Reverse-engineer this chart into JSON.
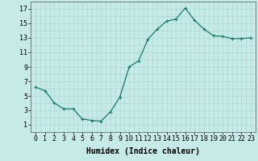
{
  "x": [
    0,
    1,
    2,
    3,
    4,
    5,
    6,
    7,
    8,
    9,
    10,
    11,
    12,
    13,
    14,
    15,
    16,
    17,
    18,
    19,
    20,
    21,
    22,
    23
  ],
  "y": [
    6.2,
    5.7,
    4.0,
    3.2,
    3.2,
    1.8,
    1.6,
    1.5,
    2.8,
    4.8,
    9.0,
    9.8,
    12.8,
    14.2,
    15.3,
    15.6,
    17.1,
    15.4,
    14.2,
    13.3,
    13.2,
    12.9,
    12.9,
    13.0
  ],
  "line_color": "#1a7a6e",
  "marker": "+",
  "marker_size": 3,
  "marker_linewidth": 0.8,
  "line_width": 0.9,
  "background_color": "#c5eae7",
  "grid_color": "#a8d5d1",
  "xlabel": "Humidex (Indice chaleur)",
  "xlabel_fontsize": 7,
  "tick_fontsize": 6,
  "ylim": [
    0,
    18
  ],
  "xlim": [
    -0.5,
    23.5
  ],
  "yticks": [
    1,
    3,
    5,
    7,
    9,
    11,
    13,
    15,
    17
  ],
  "xticks": [
    0,
    1,
    2,
    3,
    4,
    5,
    6,
    7,
    8,
    9,
    10,
    11,
    12,
    13,
    14,
    15,
    16,
    17,
    18,
    19,
    20,
    21,
    22,
    23
  ]
}
